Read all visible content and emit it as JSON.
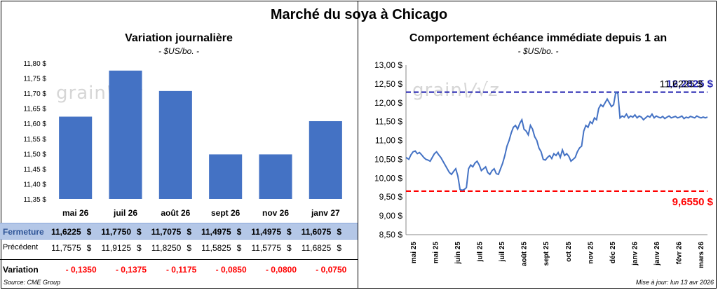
{
  "title": "Marché du soya à Chicago",
  "left": {
    "title": "Variation journalière",
    "subtitle": "- $US/bo. -",
    "watermark": "grain"
  },
  "right": {
    "title": "Comportement  échéance immédiate depuis 1 an",
    "subtitle": "- $US/bo. -",
    "watermark": "grain"
  },
  "chart_data": [
    {
      "type": "bar",
      "title": "Variation journalière",
      "subtitle": "- $US/bo. -",
      "categories": [
        "mai 26",
        "juil 26",
        "août 26",
        "sept 26",
        "nov 26",
        "janv 27"
      ],
      "values": [
        11.6225,
        11.775,
        11.7075,
        11.4975,
        11.4975,
        11.6075
      ],
      "ylim": [
        11.35,
        11.8
      ],
      "yticks": [
        "11,35 $",
        "11,40 $",
        "11,45 $",
        "11,50 $",
        "11,55 $",
        "11,60 $",
        "11,65 $",
        "11,70 $",
        "11,75 $",
        "11,80 $"
      ],
      "ytick_values": [
        11.35,
        11.4,
        11.45,
        11.5,
        11.55,
        11.6,
        11.65,
        11.7,
        11.75,
        11.8
      ],
      "bar_color": "#4472c4",
      "grid": false
    },
    {
      "type": "line",
      "title": "Comportement  échéance immédiate depuis 1 an",
      "subtitle": "- $US/bo. -",
      "ylim": [
        8.5,
        13.0
      ],
      "yticks": [
        "8,50 $",
        "9,00 $",
        "9,50 $",
        "10,00 $",
        "10,50 $",
        "11,00 $",
        "11,50 $",
        "12,00 $",
        "12,50 $",
        "13,00 $"
      ],
      "ytick_values": [
        8.5,
        9.0,
        9.5,
        10.0,
        10.5,
        11.0,
        11.5,
        12.0,
        12.5,
        13.0
      ],
      "xticks": [
        "mai 25",
        "mai 25",
        "juin 25",
        "juil 25",
        "juil 25",
        "août 25",
        "sept 25",
        "oct 25",
        "nov 25",
        "déc 25",
        "janv 26",
        "janv 26",
        "févr 26",
        "mars 26"
      ],
      "line_color": "#4472c4",
      "grid": false,
      "x": [
        0,
        4,
        7,
        10,
        13,
        16,
        19,
        22,
        25,
        28,
        31,
        34,
        37,
        40,
        43,
        46,
        49,
        52,
        55,
        58,
        61,
        64,
        67,
        70,
        73,
        76,
        79,
        82,
        85,
        88,
        91,
        94,
        97,
        100,
        103,
        106,
        109,
        112,
        115,
        118,
        121,
        124,
        127,
        130,
        133,
        136,
        139,
        142,
        145,
        148,
        151,
        154,
        157,
        160,
        163,
        166,
        169,
        172,
        175,
        178,
        181,
        184,
        187,
        190,
        193,
        196,
        199,
        202,
        205,
        208,
        211,
        214,
        217,
        220,
        223,
        226,
        229,
        232,
        235,
        238,
        241,
        244,
        247,
        250,
        253,
        256,
        259,
        262,
        265,
        268,
        271,
        274,
        277,
        280,
        283,
        286,
        289,
        292,
        295,
        298,
        301,
        304,
        307,
        310,
        313,
        316,
        319,
        322,
        325,
        328,
        331,
        334,
        337,
        340,
        343,
        346,
        349,
        352,
        355,
        358,
        361,
        364,
        367,
        370,
        373,
        376,
        379,
        382,
        385,
        388,
        391,
        394,
        397,
        400,
        403,
        406,
        409,
        412,
        415,
        418,
        421,
        424
      ],
      "values": [
        10.55,
        10.5,
        10.62,
        10.7,
        10.72,
        10.65,
        10.68,
        10.62,
        10.55,
        10.5,
        10.48,
        10.45,
        10.55,
        10.65,
        10.7,
        10.62,
        10.55,
        10.45,
        10.35,
        10.25,
        10.15,
        10.1,
        10.18,
        10.25,
        10.05,
        9.7,
        9.68,
        9.7,
        9.75,
        10.25,
        10.35,
        10.3,
        10.4,
        10.45,
        10.35,
        10.2,
        10.25,
        10.3,
        10.15,
        10.1,
        10.2,
        10.25,
        10.12,
        10.1,
        10.25,
        10.4,
        10.6,
        10.85,
        11.0,
        11.2,
        11.35,
        11.4,
        11.3,
        11.45,
        11.55,
        11.3,
        11.25,
        11.15,
        11.4,
        11.3,
        11.1,
        11.0,
        10.8,
        10.7,
        10.5,
        10.48,
        10.55,
        10.6,
        10.52,
        10.65,
        10.6,
        10.68,
        10.55,
        10.75,
        10.6,
        10.65,
        10.58,
        10.45,
        10.5,
        10.55,
        10.7,
        10.8,
        10.85,
        11.25,
        11.4,
        11.35,
        11.5,
        11.45,
        11.6,
        11.55,
        11.85,
        11.95,
        11.9,
        12.0,
        12.1,
        12.0,
        11.9,
        11.95,
        12.28,
        12.25,
        11.6,
        11.65,
        11.62,
        11.7,
        11.6,
        11.65,
        11.62,
        11.68,
        11.6,
        11.65,
        11.62,
        11.55,
        11.6,
        11.65,
        11.62,
        11.7,
        11.6,
        11.65,
        11.62,
        11.6,
        11.64,
        11.58,
        11.62,
        11.65,
        11.6,
        11.62,
        11.64,
        11.6,
        11.62,
        11.65,
        11.58,
        11.62,
        11.6,
        11.64,
        11.62,
        11.6,
        11.65,
        11.62,
        11.6,
        11.6225,
        11.6,
        11.6225
      ],
      "reference_lines": [
        {
          "label": "12,2825 $",
          "value": 12.2825,
          "color": "#2a2ab3",
          "style": "dashed"
        },
        {
          "label": "9,6550  $",
          "value": 9.655,
          "color": "#ff0000",
          "style": "dashed"
        }
      ],
      "annotation": "11,6225 $"
    }
  ],
  "table": {
    "rows": [
      {
        "label": "Fermeture",
        "values": [
          "11,6225",
          "11,7750",
          "11,7075",
          "11,4975",
          "11,4975",
          "11,6075"
        ],
        "currency": "$"
      },
      {
        "label": "Précédent",
        "values": [
          "11,7575",
          "11,9125",
          "11,8250",
          "11,5825",
          "11,5775",
          "11,6825"
        ],
        "currency": "$"
      },
      {
        "label": "Variation",
        "values": [
          "- 0,1350",
          "- 0,1375",
          "- 0,1175",
          "- 0,0850",
          "- 0,0800",
          "- 0,0750"
        ],
        "currency": ""
      }
    ]
  },
  "footer": {
    "source": "Source: CME Group",
    "updated": "Mise à jour: lun 13 avr 2026"
  }
}
